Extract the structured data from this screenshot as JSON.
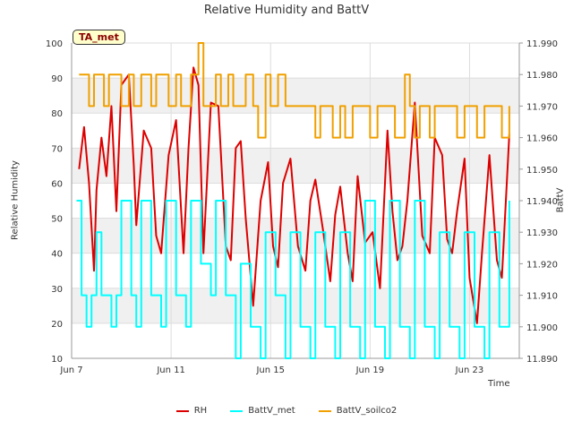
{
  "chart_data": {
    "type": "line",
    "title": "Relative Humidity and BattV",
    "annotation": "TA_met",
    "xlabel": "Time",
    "ylabel_left": "Relative Humidity",
    "ylabel_right": "BattV",
    "x_ticks": [
      "Jun 7",
      "Jun 11",
      "Jun 15",
      "Jun 19",
      "Jun 23"
    ],
    "xlim_days": [
      7,
      25
    ],
    "ylim_left": [
      10,
      100
    ],
    "yticks_left": [
      "10",
      "20",
      "30",
      "40",
      "50",
      "60",
      "70",
      "80",
      "90",
      "100"
    ],
    "ylim_right": [
      11.89,
      11.99
    ],
    "yticks_right": [
      "11.890",
      "11.900",
      "11.910",
      "11.920",
      "11.930",
      "11.940",
      "11.950",
      "11.960",
      "11.970",
      "11.980",
      "11.990"
    ],
    "grid": true,
    "legend_position": "bottom",
    "series": [
      {
        "name": "RH",
        "color": "#dd0000",
        "axis": "left",
        "x": [
          7.3,
          7.5,
          7.7,
          7.9,
          8.0,
          8.2,
          8.4,
          8.6,
          8.8,
          9.0,
          9.3,
          9.5,
          9.6,
          9.9,
          10.2,
          10.4,
          10.6,
          10.9,
          11.2,
          11.5,
          11.7,
          11.9,
          12.1,
          12.3,
          12.6,
          12.9,
          13.2,
          13.4,
          13.6,
          13.8,
          14.0,
          14.3,
          14.6,
          14.9,
          15.1,
          15.3,
          15.5,
          15.8,
          16.1,
          16.4,
          16.6,
          16.8,
          17.1,
          17.4,
          17.6,
          17.8,
          18.1,
          18.3,
          18.5,
          18.8,
          19.1,
          19.4,
          19.7,
          19.9,
          20.1,
          20.3,
          20.5,
          20.8,
          21.1,
          21.4,
          21.6,
          21.9,
          22.1,
          22.3,
          22.5,
          22.8,
          23.0,
          23.3,
          23.5,
          23.8,
          24.1,
          24.3,
          24.6
        ],
        "values": [
          64,
          76,
          60,
          35,
          58,
          73,
          62,
          82,
          52,
          88,
          91,
          65,
          48,
          75,
          70,
          45,
          40,
          68,
          78,
          40,
          70,
          93,
          88,
          40,
          83,
          82,
          42,
          38,
          70,
          72,
          50,
          25,
          55,
          66,
          42,
          36,
          60,
          67,
          42,
          35,
          55,
          61,
          47,
          32,
          51,
          59,
          40,
          32,
          62,
          43,
          46,
          30,
          75,
          52,
          38,
          42,
          55,
          83,
          45,
          40,
          73,
          68,
          44,
          40,
          52,
          67,
          33,
          20,
          40,
          68,
          38,
          33,
          74
        ]
      },
      {
        "name": "BattV_met",
        "color": "#00ffff",
        "axis": "right",
        "x": [
          7.2,
          7.4,
          7.6,
          7.8,
          8.0,
          8.2,
          8.6,
          8.8,
          9.0,
          9.4,
          9.6,
          9.8,
          10.2,
          10.6,
          10.8,
          11.2,
          11.6,
          11.8,
          12.2,
          12.6,
          12.8,
          13.2,
          13.6,
          13.8,
          14.2,
          14.6,
          14.8,
          15.2,
          15.6,
          15.8,
          16.2,
          16.6,
          16.8,
          17.2,
          17.6,
          17.8,
          18.2,
          18.6,
          18.8,
          19.2,
          19.6,
          19.8,
          20.2,
          20.6,
          20.8,
          21.2,
          21.6,
          21.8,
          22.2,
          22.6,
          22.8,
          23.2,
          23.6,
          23.8,
          24.2,
          24.6
        ],
        "values": [
          11.94,
          11.91,
          11.9,
          11.91,
          11.93,
          11.91,
          11.9,
          11.91,
          11.94,
          11.91,
          11.9,
          11.94,
          11.91,
          11.9,
          11.94,
          11.91,
          11.9,
          11.94,
          11.92,
          11.91,
          11.94,
          11.91,
          11.89,
          11.92,
          11.9,
          11.89,
          11.93,
          11.91,
          11.89,
          11.93,
          11.9,
          11.89,
          11.93,
          11.9,
          11.89,
          11.93,
          11.9,
          11.89,
          11.94,
          11.9,
          11.89,
          11.94,
          11.9,
          11.89,
          11.94,
          11.9,
          11.89,
          11.93,
          11.9,
          11.89,
          11.93,
          11.9,
          11.89,
          11.93,
          11.9,
          11.94
        ]
      },
      {
        "name": "BattV_soilco2",
        "color": "#f0a000",
        "axis": "right",
        "x": [
          7.3,
          7.7,
          7.9,
          8.3,
          8.5,
          9.0,
          9.3,
          9.5,
          9.8,
          10.2,
          10.4,
          10.9,
          11.2,
          11.4,
          11.8,
          12.1,
          12.3,
          12.8,
          13.0,
          13.3,
          13.5,
          14.0,
          14.3,
          14.5,
          14.8,
          15.0,
          15.3,
          15.6,
          16.0,
          16.5,
          16.8,
          17.0,
          17.5,
          17.8,
          18.0,
          18.3,
          18.6,
          19.0,
          19.3,
          19.6,
          20.0,
          20.4,
          20.6,
          20.8,
          21.0,
          21.4,
          21.6,
          22.0,
          22.5,
          22.8,
          23.0,
          23.3,
          23.6,
          24.0,
          24.3,
          24.6
        ],
        "values": [
          11.98,
          11.97,
          11.98,
          11.97,
          11.98,
          11.97,
          11.98,
          11.97,
          11.98,
          11.97,
          11.98,
          11.97,
          11.98,
          11.97,
          11.98,
          11.99,
          11.97,
          11.98,
          11.97,
          11.98,
          11.97,
          11.98,
          11.97,
          11.96,
          11.98,
          11.97,
          11.98,
          11.97,
          11.97,
          11.97,
          11.96,
          11.97,
          11.96,
          11.97,
          11.96,
          11.97,
          11.97,
          11.96,
          11.97,
          11.97,
          11.96,
          11.98,
          11.97,
          11.96,
          11.97,
          11.96,
          11.97,
          11.97,
          11.96,
          11.97,
          11.97,
          11.96,
          11.97,
          11.97,
          11.96,
          11.97
        ]
      }
    ]
  }
}
